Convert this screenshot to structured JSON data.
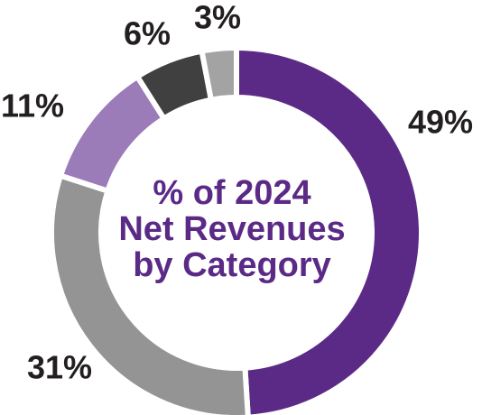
{
  "chart_data": {
    "type": "pie",
    "title_lines": [
      "% of 2024",
      "Net Revenues",
      "by Category"
    ],
    "slices": [
      {
        "label": "49%",
        "value": 49,
        "color": "#5b2a86"
      },
      {
        "label": "31%",
        "value": 31,
        "color": "#949494"
      },
      {
        "label": "11%",
        "value": 11,
        "color": "#9b7bb8"
      },
      {
        "label": "6%",
        "value": 6,
        "color": "#404040"
      },
      {
        "label": "3%",
        "value": 3,
        "color": "#a3a3a3"
      }
    ],
    "donut": true,
    "legend": "none"
  }
}
